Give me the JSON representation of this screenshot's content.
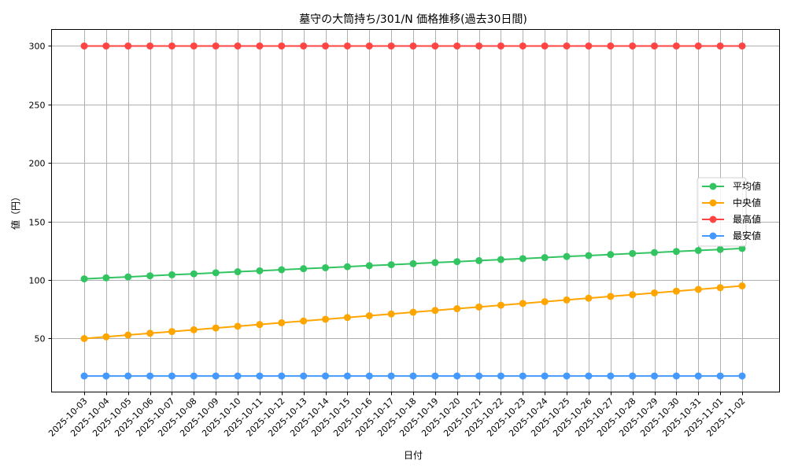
{
  "chart_data": {
    "type": "line",
    "title": "墓守の大筒持ち/301/N 価格推移(過去30日間)",
    "xlabel": "日付",
    "ylabel": "値（円）",
    "ylim": [
      4.3,
      314.1
    ],
    "yticks": [
      50,
      100,
      150,
      200,
      250,
      300
    ],
    "grid": true,
    "legend_position": "center-right",
    "x": [
      "2025-10-03",
      "2025-10-04",
      "2025-10-05",
      "2025-10-06",
      "2025-10-07",
      "2025-10-08",
      "2025-10-09",
      "2025-10-10",
      "2025-10-11",
      "2025-10-12",
      "2025-10-13",
      "2025-10-14",
      "2025-10-15",
      "2025-10-16",
      "2025-10-17",
      "2025-10-18",
      "2025-10-19",
      "2025-10-20",
      "2025-10-21",
      "2025-10-22",
      "2025-10-23",
      "2025-10-24",
      "2025-10-25",
      "2025-10-26",
      "2025-10-27",
      "2025-10-28",
      "2025-10-29",
      "2025-10-30",
      "2025-10-31",
      "2025-11-01",
      "2025-11-02"
    ],
    "series": [
      {
        "name": "平均値",
        "color": "#33c462",
        "values": [
          101.0,
          101.9,
          102.7,
          103.6,
          104.5,
          105.3,
          106.2,
          107.1,
          107.9,
          108.8,
          109.7,
          110.5,
          111.4,
          112.3,
          113.1,
          114.0,
          114.9,
          115.7,
          116.6,
          117.5,
          118.3,
          119.2,
          120.1,
          120.9,
          121.8,
          122.7,
          123.5,
          124.4,
          125.3,
          126.1,
          127.0
        ]
      },
      {
        "name": "中央値",
        "color": "#ffa500",
        "values": [
          50.0,
          51.5,
          53.0,
          54.5,
          56.0,
          57.5,
          59.0,
          60.5,
          62.0,
          63.5,
          65.0,
          66.5,
          68.0,
          69.5,
          71.0,
          72.5,
          74.0,
          75.5,
          77.0,
          78.5,
          80.0,
          81.5,
          83.0,
          84.5,
          86.0,
          87.5,
          89.0,
          90.5,
          92.0,
          93.5,
          95.0
        ]
      },
      {
        "name": "最高値",
        "color": "#ff4444",
        "values": [
          300,
          300,
          300,
          300,
          300,
          300,
          300,
          300,
          300,
          300,
          300,
          300,
          300,
          300,
          300,
          300,
          300,
          300,
          300,
          300,
          300,
          300,
          300,
          300,
          300,
          300,
          300,
          300,
          300,
          300,
          300
        ]
      },
      {
        "name": "最安値",
        "color": "#4499ff",
        "values": [
          18,
          18,
          18,
          18,
          18,
          18,
          18,
          18,
          18,
          18,
          18,
          18,
          18,
          18,
          18,
          18,
          18,
          18,
          18,
          18,
          18,
          18,
          18,
          18,
          18,
          18,
          18,
          18,
          18,
          18,
          18
        ]
      }
    ]
  }
}
